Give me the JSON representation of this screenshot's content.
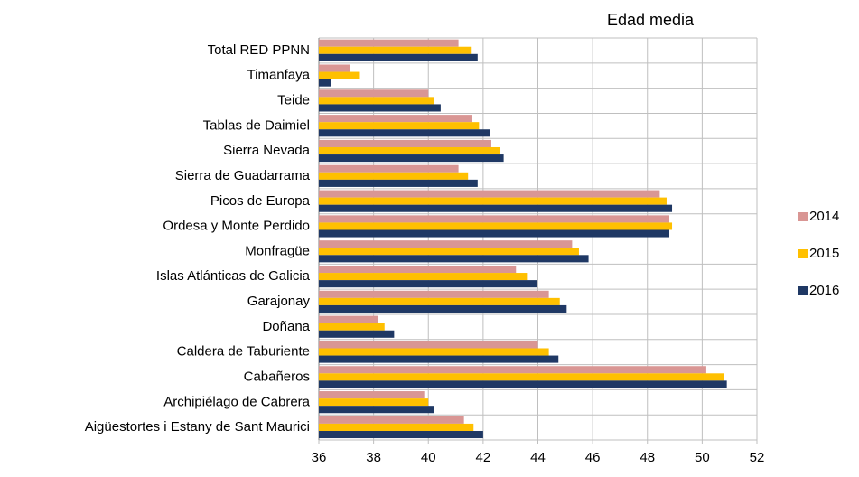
{
  "chart_data": {
    "type": "hbar",
    "title": "Edad media",
    "categories": [
      "Total RED PPNN",
      "Timanfaya",
      "Teide",
      "Tablas de Daimiel",
      "Sierra Nevada",
      "Sierra de Guadarrama",
      "Picos de Europa",
      "Ordesa y Monte Perdido",
      "Monfragüe",
      "Islas Atlánticas de Galicia",
      "Garajonay",
      "Doñana",
      "Caldera de Taburiente",
      "Cabañeros",
      "Archipiélago de Cabrera",
      "Aigüestortes i Estany de Sant Maurici"
    ],
    "series": [
      {
        "name": "2014",
        "color": "#d99694",
        "values": [
          41.1,
          37.15,
          40.0,
          41.6,
          42.3,
          41.1,
          48.45,
          48.8,
          45.25,
          43.2,
          44.4,
          38.15,
          44.0,
          50.15,
          39.85,
          41.3
        ]
      },
      {
        "name": "2015",
        "color": "#ffc000",
        "values": [
          41.55,
          37.5,
          40.2,
          41.85,
          42.6,
          41.45,
          48.7,
          48.9,
          45.5,
          43.6,
          44.8,
          38.4,
          44.4,
          50.8,
          40.0,
          41.65
        ]
      },
      {
        "name": "2016",
        "color": "#1f3864",
        "values": [
          41.8,
          36.45,
          40.45,
          42.25,
          42.75,
          41.8,
          48.9,
          48.8,
          45.85,
          43.95,
          45.05,
          38.75,
          44.75,
          50.9,
          40.2,
          42.0
        ]
      }
    ],
    "xlim": [
      36,
      52
    ],
    "xticks": [
      36,
      38,
      40,
      42,
      44,
      46,
      48,
      50,
      52
    ],
    "grid": true,
    "legend": "right"
  }
}
